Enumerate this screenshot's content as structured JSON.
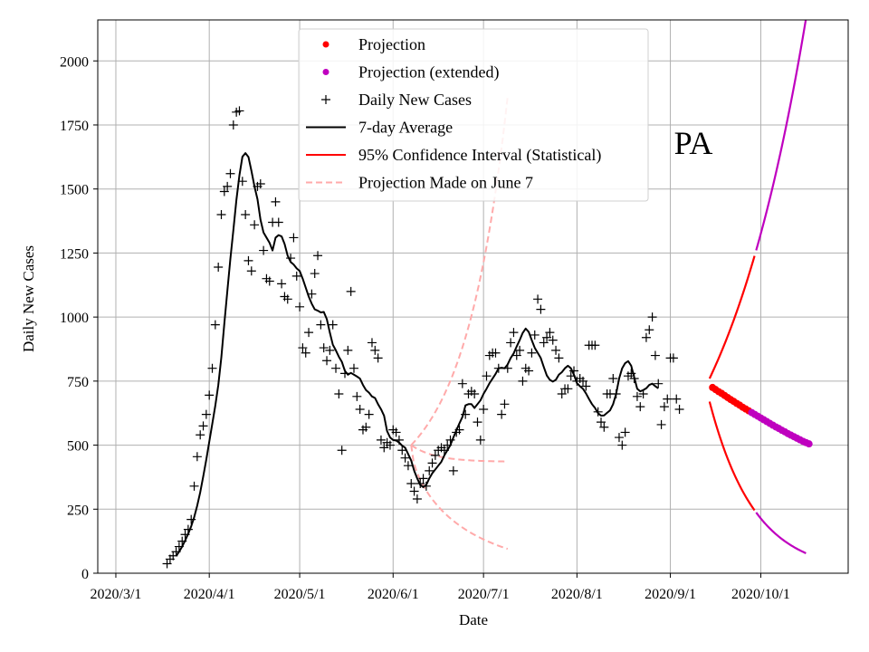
{
  "chart_data": {
    "type": "line",
    "title": "",
    "annotation": "PA",
    "xlabel": "Date",
    "ylabel": "Daily New Cases",
    "grid": true,
    "legend_position": "top-center",
    "xlim": [
      "2020-02-24",
      "2020-10-30"
    ],
    "ylim": [
      0,
      2160
    ],
    "x_ticks": [
      {
        "date": "2020-03-01",
        "label": "2020/3/1"
      },
      {
        "date": "2020-04-01",
        "label": "2020/4/1"
      },
      {
        "date": "2020-05-01",
        "label": "2020/5/1"
      },
      {
        "date": "2020-06-01",
        "label": "2020/6/1"
      },
      {
        "date": "2020-07-01",
        "label": "2020/7/1"
      },
      {
        "date": "2020-08-01",
        "label": "2020/8/1"
      },
      {
        "date": "2020-09-01",
        "label": "2020/9/1"
      },
      {
        "date": "2020-10-01",
        "label": "2020/10/1"
      }
    ],
    "y_ticks": [
      {
        "value": 0,
        "label": "0"
      },
      {
        "value": 250,
        "label": "250"
      },
      {
        "value": 500,
        "label": "500"
      },
      {
        "value": 750,
        "label": "750"
      },
      {
        "value": 1000,
        "label": "1000"
      },
      {
        "value": 1250,
        "label": "1250"
      },
      {
        "value": 1500,
        "label": "1500"
      },
      {
        "value": 1750,
        "label": "1750"
      },
      {
        "value": 2000,
        "label": "2000"
      }
    ],
    "legend": [
      {
        "key": "projection",
        "label": "Projection",
        "style": "dot",
        "color": "#ff0000"
      },
      {
        "key": "projection_ext",
        "label": "Projection (extended)",
        "style": "dot",
        "color": "#bf00bf"
      },
      {
        "key": "daily",
        "label": "Daily New Cases",
        "style": "plus",
        "color": "#000000"
      },
      {
        "key": "avg",
        "label": "7-day Average",
        "style": "line",
        "color": "#000000"
      },
      {
        "key": "ci",
        "label": "95% Confidence Interval (Statistical)",
        "style": "line",
        "color": "#ff0000"
      },
      {
        "key": "june7",
        "label": "Projection Made on June 7",
        "style": "dashed",
        "color": "#ffaaaa"
      }
    ],
    "series": {
      "daily_new_cases": {
        "start": "2020-03-18",
        "values": [
          37,
          55,
          68,
          84,
          104,
          125,
          151,
          171,
          210,
          340,
          455,
          540,
          575,
          620,
          695,
          800,
          970,
          1195,
          1400,
          1490,
          1510,
          1560,
          1750,
          1800,
          1805,
          1530,
          1400,
          1220,
          1180,
          1360,
          1510,
          1520,
          1260,
          1150,
          1140,
          1370,
          1450,
          1370,
          1130,
          1080,
          1070,
          1230,
          1310,
          1160,
          1040,
          880,
          860,
          940,
          1090,
          1170,
          1240,
          970,
          880,
          830,
          870,
          970,
          800,
          700,
          480,
          780,
          870,
          1100,
          800,
          690,
          640,
          560,
          570,
          620,
          900,
          870,
          840,
          520,
          490,
          510,
          500,
          560,
          550,
          520,
          480,
          450,
          420,
          350,
          320,
          290,
          350,
          370,
          340,
          400,
          430,
          460,
          480,
          490,
          480,
          500,
          520,
          400,
          550,
          560,
          740,
          620,
          700,
          710,
          700,
          590,
          520,
          640,
          770,
          850,
          860,
          860,
          800,
          620,
          660,
          800,
          900,
          940,
          850,
          870,
          750,
          800,
          790,
          860,
          930,
          1070,
          1030,
          900,
          920,
          940,
          910,
          870,
          840,
          700,
          720,
          720,
          770,
          790,
          750,
          760,
          750,
          730,
          890,
          890,
          890,
          630,
          590,
          570,
          700,
          700,
          760,
          700,
          530,
          500,
          550,
          770,
          780,
          760,
          690,
          650,
          700,
          920,
          950,
          1000,
          850,
          740,
          580,
          650,
          680,
          840,
          840,
          680,
          640
        ]
      },
      "seven_day_average": {
        "start": "2020-03-21",
        "values": [
          67,
          84,
          104,
          128,
          154,
          183,
          219,
          264,
          316,
          378,
          443,
          513,
          583,
          654,
          735,
          842,
          975,
          1102,
          1227,
          1340,
          1457,
          1553,
          1626,
          1640,
          1625,
          1570,
          1510,
          1460,
          1380,
          1330,
          1310,
          1290,
          1260,
          1310,
          1320,
          1315,
          1285,
          1240,
          1215,
          1205,
          1190,
          1180,
          1150,
          1115,
          1080,
          1052,
          1030,
          1025,
          1018,
          1020,
          992,
          940,
          892,
          870,
          845,
          825,
          790,
          775,
          782,
          775,
          768,
          760,
          735,
          715,
          705,
          690,
          684,
          660,
          640,
          615,
          555,
          530,
          520,
          518,
          510,
          498,
          490,
          465,
          440,
          400,
          370,
          345,
          336,
          345,
          370,
          390,
          405,
          420,
          435,
          460,
          480,
          500,
          530,
          558,
          585,
          610,
          655,
          660,
          660,
          645,
          660,
          675,
          700,
          720,
          742,
          760,
          778,
          800,
          802,
          800,
          815,
          840,
          858,
          885,
          910,
          938,
          955,
          942,
          910,
          880,
          860,
          840,
          805,
          772,
          755,
          748,
          755,
          775,
          785,
          800,
          810,
          800,
          775,
          742,
          730,
          720,
          702,
          680,
          660,
          645,
          625,
          615,
          616,
          626,
          636,
          660,
          700,
          760,
          800,
          820,
          828,
          810,
          765,
          720,
          710,
          715,
          722,
          735,
          740,
          730,
          722
        ]
      },
      "projection": {
        "start": "2020-09-15",
        "values": [
          725,
          717,
          709,
          702,
          694,
          686,
          678,
          671,
          663,
          656,
          648,
          641,
          634
        ]
      },
      "projection_extended": {
        "start": "2020-09-28",
        "values": [
          627,
          620,
          613,
          606,
          599,
          592,
          585,
          578,
          571,
          565,
          558,
          552,
          545,
          539,
          533,
          527,
          521,
          515,
          510,
          505
        ]
      },
      "ci_upper": {
        "start": "2020-09-14",
        "end": "2020-10-16",
        "start_value": 760,
        "end_value": 2165
      },
      "ci_lower": {
        "start": "2020-09-14",
        "end": "2020-10-16",
        "start_value": 670,
        "end_value": 78
      },
      "june7_projection": {
        "start": "2020-06-07",
        "end": "2020-07-09",
        "center_start": 500,
        "center_end": 435,
        "upper_start": 500,
        "upper_end": 1860,
        "lower_start": 500,
        "lower_end": 95
      }
    }
  }
}
